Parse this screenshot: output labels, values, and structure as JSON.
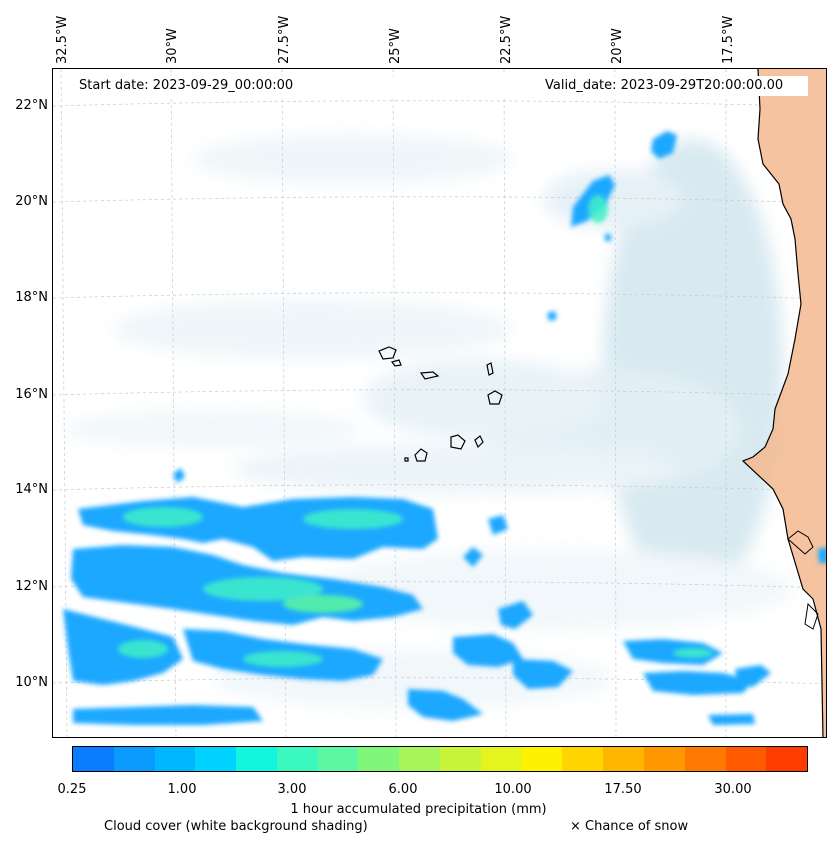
{
  "axes": {
    "lon_ticks": [
      "32.5°W",
      "30°W",
      "27.5°W",
      "25°W",
      "22.5°W",
      "20°W",
      "17.5°W"
    ],
    "lat_ticks": [
      "22°N",
      "20°N",
      "18°N",
      "16°N",
      "14°N",
      "12°N",
      "10°N"
    ]
  },
  "header": {
    "start_date": "Start date: 2023-09-29_00:00:00",
    "valid_date": "Valid_date: 2023-09-29T20:00:00.00"
  },
  "colorbar": {
    "label": "1 hour accumulated precipitation (mm)",
    "ticks": [
      "0.25",
      "1.00",
      "3.00",
      "6.00",
      "10.00",
      "17.50",
      "30.00"
    ],
    "colors": [
      "#0a7dff",
      "#0a9bff",
      "#00b7ff",
      "#00d3ff",
      "#14f5e0",
      "#3bf8bf",
      "#5cf7a0",
      "#80f67a",
      "#a6f55a",
      "#c8f53c",
      "#e4f41e",
      "#fff200",
      "#ffd400",
      "#ffb600",
      "#ff9700",
      "#ff7800",
      "#ff5a00",
      "#ff3c00"
    ]
  },
  "legend": {
    "cloud_cover": "Cloud cover (white background shading)",
    "snow": "× Chance of snow"
  },
  "colors": {
    "land": "#f3b98e",
    "cloud": "#d6e9f2",
    "rain": "#1ea8ff",
    "rain_heavy": "#3ff0c8"
  }
}
